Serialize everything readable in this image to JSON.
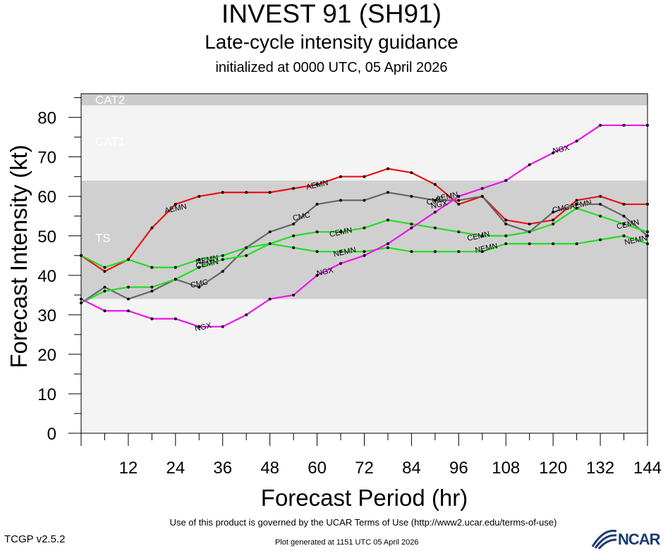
{
  "header": {
    "title": "INVEST 91 (SH91)",
    "subtitle": "Late-cycle intensity guidance",
    "init": "initialized at 0000 UTC, 05 April 2026"
  },
  "footer": {
    "terms": "Use of this product is governed by the UCAR Terms of Use (http://www2.ucar.edu/terms-of-use)",
    "version": "TCGP v2.5.2",
    "generated": "Plot generated at 1151 UTC   05 April 2026",
    "logo": "NCAR"
  },
  "chart_data": {
    "type": "line",
    "xlabel": "Forecast Period (hr)",
    "ylabel": "Forecast Intensity (kt)",
    "xlim": [
      0,
      144
    ],
    "ylim": [
      0,
      86
    ],
    "xticks": [
      12,
      24,
      36,
      48,
      60,
      72,
      84,
      96,
      108,
      120,
      132,
      144
    ],
    "yticks": [
      0,
      10,
      20,
      30,
      40,
      50,
      60,
      70,
      80
    ],
    "bands": [
      {
        "label": "CAT2",
        "from": 83,
        "to": 86,
        "fill": "#cccccc"
      },
      {
        "label": "CAT1",
        "from": 64,
        "to": 83,
        "fill": "#f4f4f4"
      },
      {
        "label": "TS",
        "from": 34,
        "to": 64,
        "fill": "#d0d0d0"
      },
      {
        "label": "",
        "from": 0,
        "to": 34,
        "fill": "#f4f4f4"
      }
    ],
    "series": [
      {
        "name": "AEMN",
        "color": "#ee1111",
        "x": [
          0,
          6,
          12,
          18,
          24,
          30,
          36,
          42,
          48,
          54,
          60,
          66,
          72,
          78,
          84,
          90,
          96,
          102,
          108,
          114,
          120,
          126,
          132,
          138,
          144
        ],
        "y": [
          45,
          41,
          44,
          52,
          58,
          60,
          61,
          61,
          61,
          62,
          63,
          65,
          65,
          67,
          66,
          63,
          58,
          60,
          54,
          53,
          54,
          59,
          60,
          58,
          58
        ],
        "labels": [
          {
            "x": 24,
            "y": 57
          },
          {
            "x": 60,
            "y": 63
          },
          {
            "x": 93,
            "y": 60
          },
          {
            "x": 127,
            "y": 58
          }
        ]
      },
      {
        "name": "CMC",
        "color": "#666666",
        "x": [
          0,
          6,
          12,
          18,
          24,
          30,
          36,
          42,
          48,
          54,
          60,
          66,
          72,
          78,
          84,
          90,
          96,
          102,
          108,
          114,
          120,
          126,
          132,
          138,
          144
        ],
        "y": [
          33,
          37,
          34,
          36,
          39,
          37,
          41,
          47,
          51,
          53,
          58,
          59,
          59,
          61,
          60,
          59,
          59,
          60,
          53,
          51,
          56,
          58,
          58,
          55,
          50
        ],
        "labels": [
          {
            "x": 30,
            "y": 38
          },
          {
            "x": 56,
            "y": 55
          },
          {
            "x": 90,
            "y": 59
          },
          {
            "x": 122,
            "y": 57
          }
        ]
      },
      {
        "name": "CEMN",
        "color": "#22dd22",
        "x": [
          0,
          6,
          12,
          18,
          24,
          30,
          36,
          42,
          48,
          54,
          60,
          66,
          72,
          78,
          84,
          90,
          96,
          102,
          108,
          114,
          120,
          126,
          132,
          138,
          144
        ],
        "y": [
          33,
          36,
          37,
          37,
          39,
          42,
          44,
          45,
          48,
          50,
          51,
          51,
          52,
          54,
          53,
          52,
          51,
          50,
          50,
          51,
          53,
          57,
          55,
          53,
          51
        ],
        "labels": [
          {
            "x": 32,
            "y": 43
          },
          {
            "x": 66,
            "y": 51
          },
          {
            "x": 101,
            "y": 50
          },
          {
            "x": 139,
            "y": 53
          }
        ]
      },
      {
        "name": "NEMN",
        "color": "#22dd22",
        "x": [
          0,
          6,
          12,
          18,
          24,
          30,
          36,
          42,
          48,
          54,
          60,
          66,
          72,
          78,
          84,
          90,
          96,
          102,
          108,
          114,
          120,
          126,
          132,
          138,
          144
        ],
        "y": [
          45,
          42,
          44,
          42,
          42,
          44,
          45,
          47,
          48,
          47,
          46,
          46,
          46,
          47,
          46,
          46,
          46,
          46,
          48,
          48,
          48,
          48,
          49,
          50,
          48
        ],
        "labels": [
          {
            "x": 32,
            "y": 44
          },
          {
            "x": 67,
            "y": 46
          },
          {
            "x": 103,
            "y": 47
          },
          {
            "x": 141,
            "y": 49
          }
        ]
      },
      {
        "name": "NGX",
        "color": "#ee11ee",
        "x": [
          0,
          6,
          12,
          18,
          24,
          30,
          36,
          42,
          48,
          54,
          60,
          66,
          72,
          78,
          84,
          90,
          96,
          102,
          108,
          114,
          120,
          126,
          132,
          138,
          144
        ],
        "y": [
          34,
          31,
          31,
          29,
          29,
          27,
          27,
          30,
          34,
          35,
          40,
          43,
          45,
          48,
          52,
          56,
          60,
          62,
          64,
          68,
          71,
          74,
          78,
          78,
          78
        ],
        "labels": [
          {
            "x": 31,
            "y": 27
          },
          {
            "x": 62,
            "y": 41
          },
          {
            "x": 91,
            "y": 58
          },
          {
            "x": 122,
            "y": 72
          }
        ]
      }
    ]
  }
}
